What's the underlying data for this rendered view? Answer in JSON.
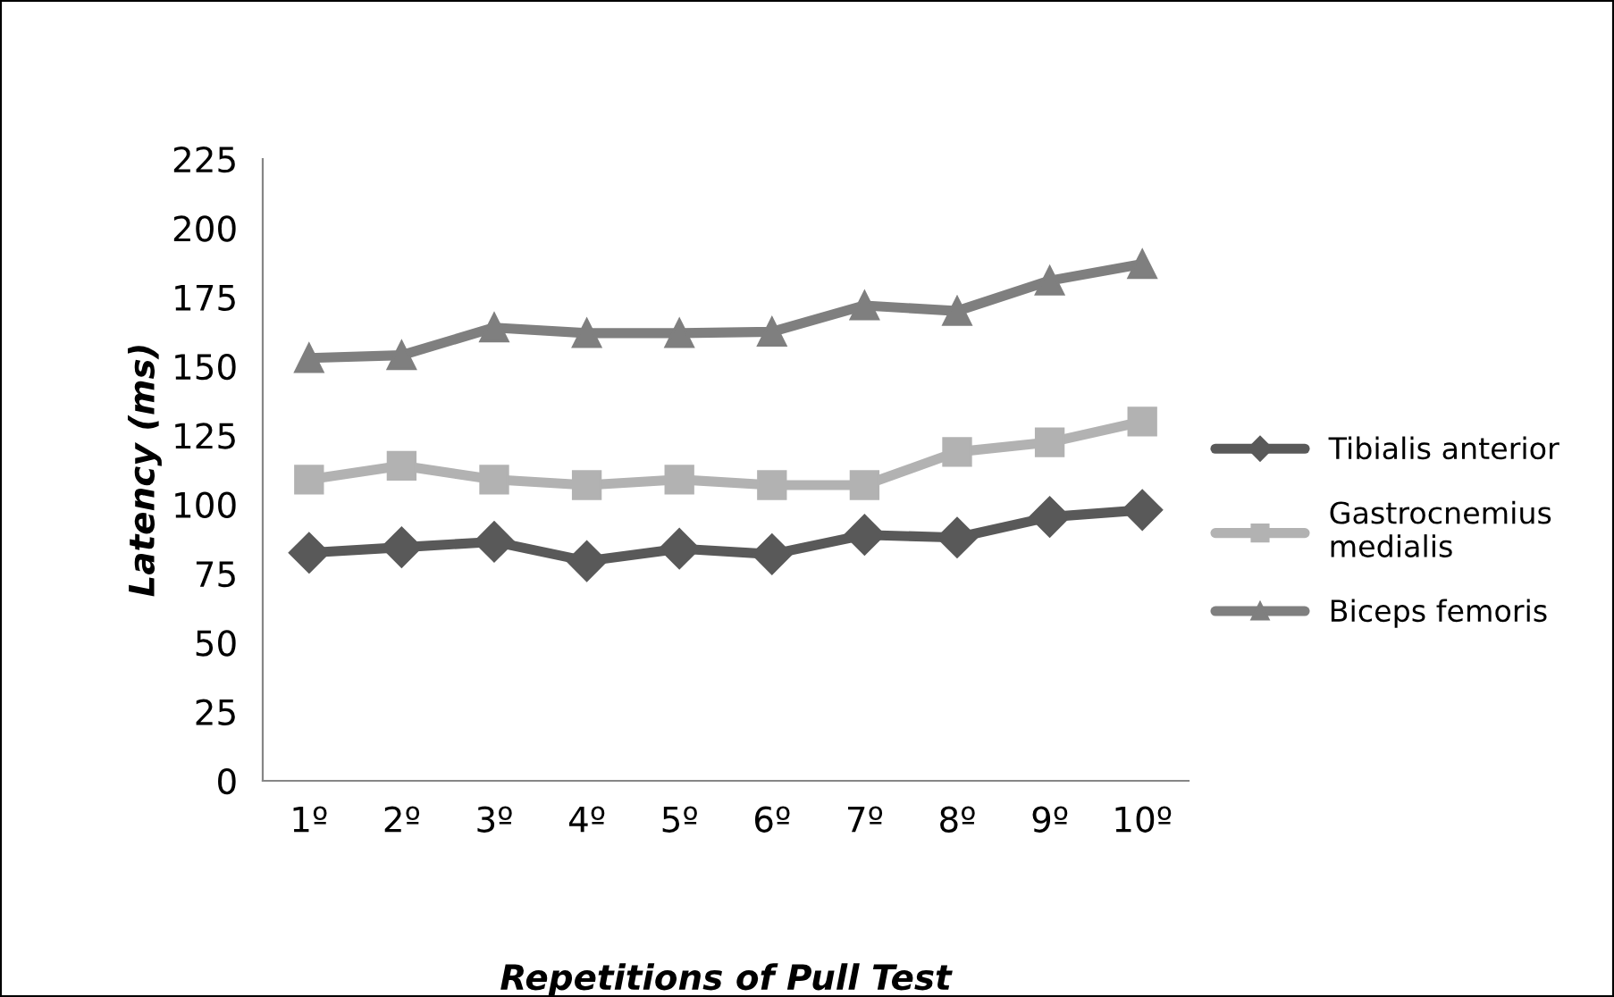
{
  "chart_data": {
    "type": "line",
    "xlabel": "Repetitions of Pull Test",
    "ylabel": "Latency (ms)",
    "categories": [
      "1º",
      "2º",
      "3º",
      "4º",
      "5º",
      "6º",
      "7º",
      "8º",
      "9º",
      "10º"
    ],
    "series": [
      {
        "name": "Tibialis anterior",
        "color": "#595959",
        "marker": "diamond",
        "values": [
          82.5,
          84.5,
          86.5,
          79.5,
          84,
          82,
          89,
          88,
          95.5,
          98
        ]
      },
      {
        "name": "Gastrocnemius\nmedialis",
        "color": "#b2b2b2",
        "marker": "square",
        "values": [
          109,
          114,
          109,
          107,
          109,
          107,
          107,
          119,
          122.5,
          130
        ]
      },
      {
        "name": "Biceps femoris",
        "color": "#7f7f7f",
        "marker": "triangle",
        "values": [
          153,
          154,
          164,
          162,
          162,
          162.5,
          172,
          170,
          181,
          187
        ]
      }
    ],
    "ylim": [
      0,
      225
    ],
    "yticks": [
      0,
      25,
      50,
      75,
      100,
      125,
      150,
      175,
      200,
      225
    ],
    "grid": false,
    "legend": "right",
    "line_style": "solid"
  }
}
